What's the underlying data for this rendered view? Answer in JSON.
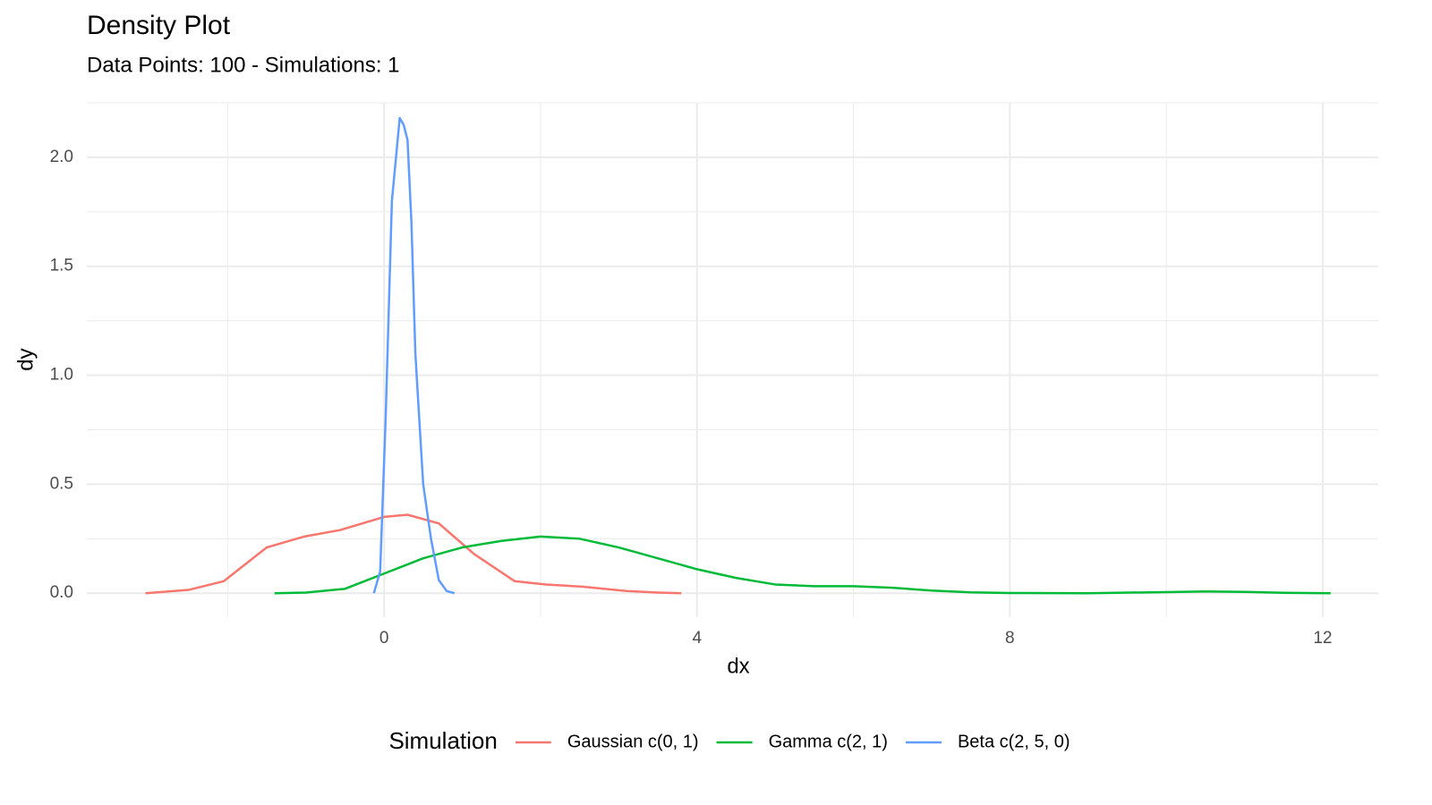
{
  "chart_data": {
    "type": "line",
    "title": "Density Plot",
    "subtitle": "Data Points: 100 - Simulations: 1",
    "x_label": "dx",
    "y_label": "dy",
    "legend_title": "Simulation",
    "legend_position": "bottom",
    "grid": true,
    "xlim": [
      -3.8,
      12.71
    ],
    "ylim": [
      -0.11,
      2.25
    ],
    "xticks": [
      0,
      4,
      8,
      12
    ],
    "yticks": [
      {
        "value": 0,
        "label": "0.0"
      },
      0.5,
      {
        "value": 1,
        "label": "1.0"
      },
      1.5,
      {
        "value": 2,
        "label": "2.0"
      }
    ],
    "xminor": [
      -2,
      2,
      6,
      10
    ],
    "yminor": [
      0.25,
      0.75,
      1.25,
      1.75,
      2.25
    ],
    "series": [
      {
        "name": "Gaussian c(0, 1)",
        "color": "#F8766D",
        "x": [
          -3.05,
          -2.5,
          -2.05,
          -1.5,
          -1.02,
          -0.56,
          0,
          0.3,
          0.7,
          1.15,
          1.67,
          2.07,
          2.53,
          3.1,
          3.5,
          3.8
        ],
        "values": [
          0,
          0.015,
          0.055,
          0.21,
          0.26,
          0.29,
          0.35,
          0.36,
          0.32,
          0.18,
          0.055,
          0.04,
          0.03,
          0.01,
          0.003,
          0
        ]
      },
      {
        "name": "Gamma c(2, 1)",
        "color": "#00BA38",
        "x": [
          -1.4,
          -1,
          -0.5,
          0,
          0.5,
          1,
          1.5,
          2,
          2.5,
          3,
          3.5,
          4,
          4.5,
          5,
          5.5,
          6,
          6.5,
          7,
          7.5,
          8,
          9,
          10,
          10.5,
          11,
          11.5,
          12.1
        ],
        "values": [
          0,
          0.003,
          0.02,
          0.09,
          0.16,
          0.21,
          0.24,
          0.26,
          0.25,
          0.21,
          0.16,
          0.11,
          0.07,
          0.04,
          0.032,
          0.032,
          0.025,
          0.012,
          0.004,
          0.001,
          0,
          0.005,
          0.008,
          0.006,
          0.002,
          0
        ]
      },
      {
        "name": "Beta c(2, 5, 0)",
        "color": "#619CFF",
        "x": [
          -0.13,
          -0.05,
          0.02,
          0.1,
          0.2,
          0.25,
          0.3,
          0.35,
          0.4,
          0.5,
          0.6,
          0.7,
          0.8,
          0.9
        ],
        "values": [
          0,
          0.1,
          0.8,
          1.8,
          2.18,
          2.15,
          2.08,
          1.7,
          1.1,
          0.5,
          0.25,
          0.06,
          0.01,
          0
        ]
      }
    ]
  }
}
